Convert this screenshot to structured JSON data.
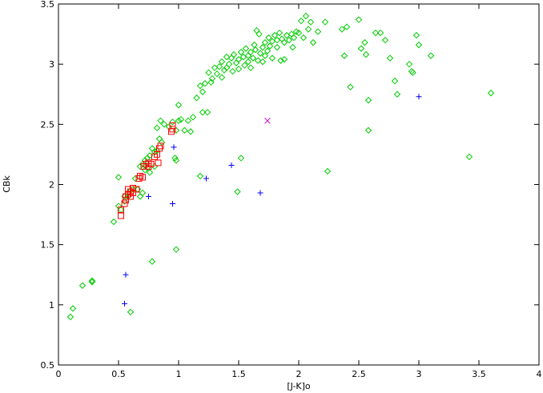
{
  "chart_data": {
    "type": "scatter",
    "title": "",
    "xlabel": "[J-K]o",
    "ylabel": "CBk",
    "xlim": [
      0,
      4
    ],
    "ylim": [
      0.5,
      3.5
    ],
    "grid": false,
    "legend": "none",
    "xticks": [
      "0",
      "0.5",
      "1",
      "1.5",
      "2",
      "2.5",
      "3",
      "3.5",
      "4"
    ],
    "yticks": [
      "0.5",
      "1",
      "1.5",
      "2",
      "2.5",
      "3",
      "3.5"
    ],
    "series": [
      {
        "marker": "diamond",
        "color": "#00cc00",
        "points": [
          [
            0.1,
            0.9
          ],
          [
            0.12,
            0.97
          ],
          [
            0.2,
            1.16
          ],
          [
            0.28,
            1.2
          ],
          [
            0.28,
            1.19
          ],
          [
            0.46,
            1.69
          ],
          [
            0.5,
            1.82
          ],
          [
            0.5,
            2.06
          ],
          [
            0.52,
            1.79
          ],
          [
            0.55,
            1.86
          ],
          [
            0.55,
            1.9
          ],
          [
            0.58,
            1.9
          ],
          [
            0.58,
            1.93
          ],
          [
            0.6,
            0.94
          ],
          [
            0.6,
            1.95
          ],
          [
            0.62,
            1.96
          ],
          [
            0.64,
            2.05
          ],
          [
            0.66,
            1.96
          ],
          [
            0.68,
            1.9
          ],
          [
            0.68,
            2.15
          ],
          [
            0.7,
            1.93
          ],
          [
            0.7,
            2.17
          ],
          [
            0.72,
            2.12
          ],
          [
            0.72,
            2.2
          ],
          [
            0.74,
            2.14
          ],
          [
            0.74,
            2.22
          ],
          [
            0.76,
            2.1
          ],
          [
            0.76,
            2.24
          ],
          [
            0.78,
            2.3
          ],
          [
            0.78,
            1.36
          ],
          [
            0.8,
            2.15
          ],
          [
            0.8,
            2.27
          ],
          [
            0.82,
            2.28
          ],
          [
            0.82,
            2.47
          ],
          [
            0.84,
            2.38
          ],
          [
            0.85,
            2.53
          ],
          [
            0.86,
            2.35
          ],
          [
            0.88,
            2.5
          ],
          [
            0.92,
            2.48
          ],
          [
            0.95,
            2.52
          ],
          [
            0.97,
            2.22
          ],
          [
            0.98,
            2.2
          ],
          [
            0.98,
            2.45
          ],
          [
            0.98,
            1.46
          ],
          [
            1.0,
            2.66
          ],
          [
            1.0,
            2.53
          ],
          [
            1.02,
            2.54
          ],
          [
            1.05,
            2.45
          ],
          [
            1.08,
            2.53
          ],
          [
            1.1,
            2.44
          ],
          [
            1.12,
            2.56
          ],
          [
            1.15,
            2.72
          ],
          [
            1.18,
            2.82
          ],
          [
            1.18,
            2.07
          ],
          [
            1.2,
            2.77
          ],
          [
            1.2,
            2.6
          ],
          [
            1.22,
            2.84
          ],
          [
            1.24,
            2.6
          ],
          [
            1.25,
            2.93
          ],
          [
            1.27,
            2.85
          ],
          [
            1.28,
            2.88
          ],
          [
            1.3,
            2.97
          ],
          [
            1.32,
            2.92
          ],
          [
            1.34,
            2.98
          ],
          [
            1.36,
            3.02
          ],
          [
            1.36,
            2.89
          ],
          [
            1.38,
            2.95
          ],
          [
            1.4,
            3.06
          ],
          [
            1.4,
            2.97
          ],
          [
            1.42,
            3.0
          ],
          [
            1.44,
            3.05
          ],
          [
            1.45,
            2.94
          ],
          [
            1.46,
            3.08
          ],
          [
            1.48,
            3.01
          ],
          [
            1.49,
            1.94
          ],
          [
            1.5,
            3.04
          ],
          [
            1.5,
            2.96
          ],
          [
            1.52,
            3.1
          ],
          [
            1.52,
            2.22
          ],
          [
            1.54,
            3.06
          ],
          [
            1.55,
            2.99
          ],
          [
            1.56,
            3.13
          ],
          [
            1.58,
            3.02
          ],
          [
            1.58,
            3.07
          ],
          [
            1.6,
            3.1
          ],
          [
            1.6,
            2.97
          ],
          [
            1.62,
            3.05
          ],
          [
            1.63,
            3.16
          ],
          [
            1.64,
            3.12
          ],
          [
            1.65,
            3.28
          ],
          [
            1.66,
            3.03
          ],
          [
            1.67,
            3.25
          ],
          [
            1.68,
            3.09
          ],
          [
            1.7,
            3.14
          ],
          [
            1.7,
            3.02
          ],
          [
            1.72,
            3.18
          ],
          [
            1.72,
            3.07
          ],
          [
            1.74,
            3.11
          ],
          [
            1.75,
            3.22
          ],
          [
            1.76,
            3.15
          ],
          [
            1.78,
            3.19
          ],
          [
            1.78,
            3.05
          ],
          [
            1.8,
            3.24
          ],
          [
            1.82,
            3.14
          ],
          [
            1.82,
            3.2
          ],
          [
            1.84,
            3.26
          ],
          [
            1.85,
            3.03
          ],
          [
            1.86,
            3.21
          ],
          [
            1.88,
            3.18
          ],
          [
            1.88,
            3.04
          ],
          [
            1.9,
            3.24
          ],
          [
            1.92,
            3.2
          ],
          [
            1.94,
            3.25
          ],
          [
            1.95,
            3.14
          ],
          [
            1.96,
            3.22
          ],
          [
            1.98,
            3.27
          ],
          [
            2.0,
            3.26
          ],
          [
            2.02,
            3.36
          ],
          [
            2.04,
            3.22
          ],
          [
            2.06,
            3.4
          ],
          [
            2.08,
            3.29
          ],
          [
            2.1,
            3.35
          ],
          [
            2.12,
            3.18
          ],
          [
            2.16,
            3.27
          ],
          [
            2.22,
            3.35
          ],
          [
            2.24,
            2.11
          ],
          [
            2.36,
            3.29
          ],
          [
            2.38,
            3.07
          ],
          [
            2.4,
            3.31
          ],
          [
            2.43,
            2.81
          ],
          [
            2.5,
            3.37
          ],
          [
            2.52,
            3.13
          ],
          [
            2.55,
            3.18
          ],
          [
            2.56,
            3.08
          ],
          [
            2.58,
            2.7
          ],
          [
            2.58,
            2.45
          ],
          [
            2.64,
            3.26
          ],
          [
            2.68,
            3.26
          ],
          [
            2.72,
            3.2
          ],
          [
            2.76,
            3.05
          ],
          [
            2.8,
            2.86
          ],
          [
            2.82,
            2.75
          ],
          [
            2.92,
            3.0
          ],
          [
            2.94,
            2.94
          ],
          [
            2.95,
            2.93
          ],
          [
            2.98,
            3.24
          ],
          [
            3.0,
            3.16
          ],
          [
            3.1,
            3.07
          ],
          [
            3.42,
            2.23
          ],
          [
            3.6,
            2.76
          ]
        ]
      },
      {
        "marker": "square",
        "color": "#ff0000",
        "points": [
          [
            0.52,
            1.74
          ],
          [
            0.52,
            1.79
          ],
          [
            0.55,
            1.84
          ],
          [
            0.56,
            1.87
          ],
          [
            0.56,
            1.9
          ],
          [
            0.58,
            1.92
          ],
          [
            0.58,
            1.96
          ],
          [
            0.6,
            1.9
          ],
          [
            0.6,
            1.94
          ],
          [
            0.62,
            1.93
          ],
          [
            0.62,
            1.97
          ],
          [
            0.65,
            1.96
          ],
          [
            0.67,
            2.05
          ],
          [
            0.68,
            2.07
          ],
          [
            0.7,
            2.06
          ],
          [
            0.71,
            2.15
          ],
          [
            0.73,
            2.17
          ],
          [
            0.75,
            2.18
          ],
          [
            0.75,
            2.15
          ],
          [
            0.77,
            2.17
          ],
          [
            0.8,
            2.23
          ],
          [
            0.82,
            2.25
          ],
          [
            0.83,
            2.18
          ],
          [
            0.84,
            2.3
          ],
          [
            0.85,
            2.32
          ],
          [
            0.94,
            2.44
          ],
          [
            0.95,
            2.46
          ],
          [
            0.95,
            2.49
          ]
        ]
      },
      {
        "marker": "plus",
        "color": "#0000ff",
        "points": [
          [
            0.55,
            1.01
          ],
          [
            0.56,
            1.25
          ],
          [
            0.75,
            1.9
          ],
          [
            0.95,
            1.84
          ],
          [
            0.96,
            2.31
          ],
          [
            1.23,
            2.05
          ],
          [
            1.44,
            2.16
          ],
          [
            1.68,
            1.93
          ],
          [
            3.0,
            2.73
          ]
        ]
      },
      {
        "marker": "cross",
        "color": "#cc00cc",
        "points": [
          [
            1.74,
            2.53
          ]
        ]
      }
    ]
  }
}
